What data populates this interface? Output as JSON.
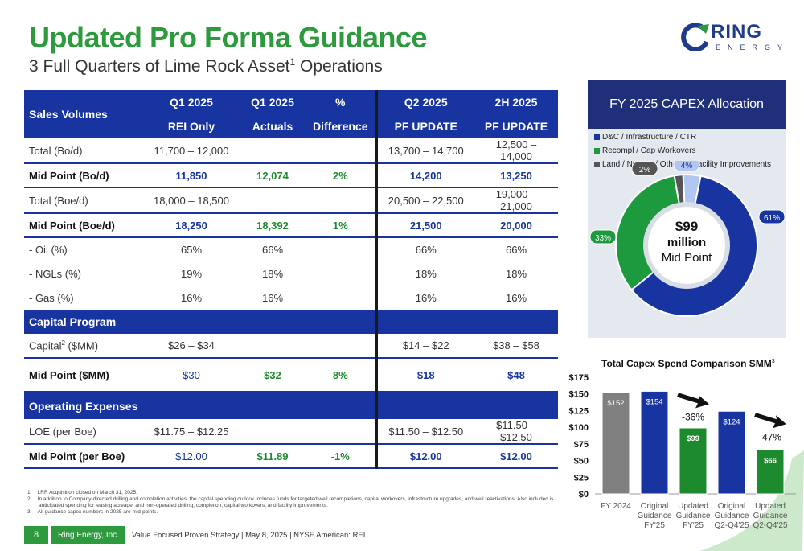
{
  "title": "Updated Pro Forma Guidance",
  "subtitle_main": "3 Full Quarters of Lime Rock Asset",
  "subtitle_sup": "1",
  "subtitle_end": " Operations",
  "logo": {
    "word": "RING",
    "sub": "ENERGY"
  },
  "table": {
    "header_top": [
      "Sales Volumes",
      "Q1 2025",
      "Q1 2025",
      "%",
      "Q2 2025",
      "2H 2025"
    ],
    "header_bottom": [
      "REI Only",
      "Actuals",
      "Difference",
      "PF UPDATE",
      "PF UPDATE"
    ],
    "rows": [
      {
        "label": "Total (Bo/d)",
        "c1": "11,700 – 12,000",
        "c2": "",
        "c3": "",
        "c4": "13,700 – 14,700",
        "c5": "12,500 – 14,000"
      },
      {
        "label": "Mid Point (Bo/d)",
        "c1": "11,850",
        "c2": "12,074",
        "c3": "2%",
        "c4": "14,200",
        "c5": "13,250"
      },
      {
        "label": "Total (Boe/d)",
        "c1": "18,000 – 18,500",
        "c2": "",
        "c3": "",
        "c4": "20,500 – 22,500",
        "c5": "19,000 – 21,000"
      },
      {
        "label": "Mid Point (Boe/d)",
        "c1": "18,250",
        "c2": "18,392",
        "c3": "1%",
        "c4": "21,500",
        "c5": "20,000"
      },
      {
        "label": "- Oil (%)",
        "c1": "65%",
        "c2": "66%",
        "c3": "",
        "c4": "66%",
        "c5": "66%"
      },
      {
        "label": "- NGLs (%)",
        "c1": "19%",
        "c2": "18%",
        "c3": "",
        "c4": "18%",
        "c5": "18%"
      },
      {
        "label": "- Gas (%)",
        "c1": "16%",
        "c2": "16%",
        "c3": "",
        "c4": "16%",
        "c5": "16%"
      }
    ],
    "capital_section": "Capital Program",
    "capital_rows": [
      {
        "label": "Capital",
        "sup": "2",
        "label_end": " ($MM)",
        "c1": "$26 – $34",
        "c2": "",
        "c3": "",
        "c4": "$14 – $22",
        "c5": "$38 – $58"
      },
      {
        "label": "Mid Point ($MM)",
        "c1": "$30",
        "c2": "$32",
        "c3": "8%",
        "c4": "$18",
        "c5": "$48"
      }
    ],
    "opex_section": "Operating Expenses",
    "opex_rows": [
      {
        "label": "LOE (per Boe)",
        "c1": "$11.75 – $12.25",
        "c2": "",
        "c3": "",
        "c4": "$11.50 – $12.50",
        "c5": "$11.50 – $12.50"
      },
      {
        "label": "Mid Point (per Boe)",
        "c1": "$12.00",
        "c2": "$11.89",
        "c3": "-1%",
        "c4": "$12.00",
        "c5": "$12.00"
      }
    ]
  },
  "footnotes": [
    "1.    LRR Acquisition closed on March 31, 2025.",
    "2.    In addition to Company-directed drilling and completion activities, the capital spending outlook includes funds for targeted well recompletions, capital workovers, infrastructure upgrades, and well reactivations. Also included is anticipated spending for leasing acreage; and non-operated drilling, completion, capital workovers, and facility improvements.",
    "3.    All guidance capex numbers in 2025 are mid-points."
  ],
  "footer": {
    "page": "8",
    "company": "Ring Energy, Inc.",
    "tagline": "Value Focused Proven Strategy | May 8, 2025 | NYSE American: REI"
  },
  "colors": {
    "brand_green": "#2e9a3e",
    "brand_blue": "#1734a1",
    "panel_navy": "#1f2f7a"
  },
  "chart_data": [
    {
      "type": "pie",
      "title": "FY 2025 CAPEX Allocation",
      "center_label": [
        "$99",
        "million",
        "Mid Point"
      ],
      "categories": [
        "D&C / Infrastructure / CTR",
        "Recompl / Cap Workovers",
        "Land / Non-op / Other",
        "Facility Improvements"
      ],
      "values": [
        61,
        33,
        2,
        4
      ],
      "labels": [
        "61%",
        "33%",
        "2%",
        "4%"
      ],
      "colors": [
        "#1734a1",
        "#1e9a3e",
        "#555555",
        "#b3c6f2"
      ],
      "legend": "top"
    },
    {
      "type": "bar",
      "title": "Total Capex Spend Comparison SMM",
      "title_sup": "3",
      "categories": [
        [
          "FY 2024"
        ],
        [
          "Original",
          "Guidance",
          "FY'25"
        ],
        [
          "Updated",
          "Guidance",
          "FY'25"
        ],
        [
          "Original",
          "Guidance",
          "Q2-Q4'25"
        ],
        [
          "Updated",
          "Guidance",
          "Q2-Q4'25"
        ]
      ],
      "values": [
        152,
        154,
        99,
        124,
        66
      ],
      "data_labels": [
        "$152",
        "$154",
        "$99",
        "$124",
        "$66"
      ],
      "colors": [
        "#808080",
        "#1734a1",
        "#1e8a2e",
        "#1734a1",
        "#1e8a2e"
      ],
      "ylim": [
        0,
        175
      ],
      "yticks": [
        "$0",
        "$25",
        "$50",
        "$75",
        "$100",
        "$125",
        "$150",
        "$175"
      ],
      "annotations": [
        "-36%",
        "-47%"
      ]
    }
  ]
}
